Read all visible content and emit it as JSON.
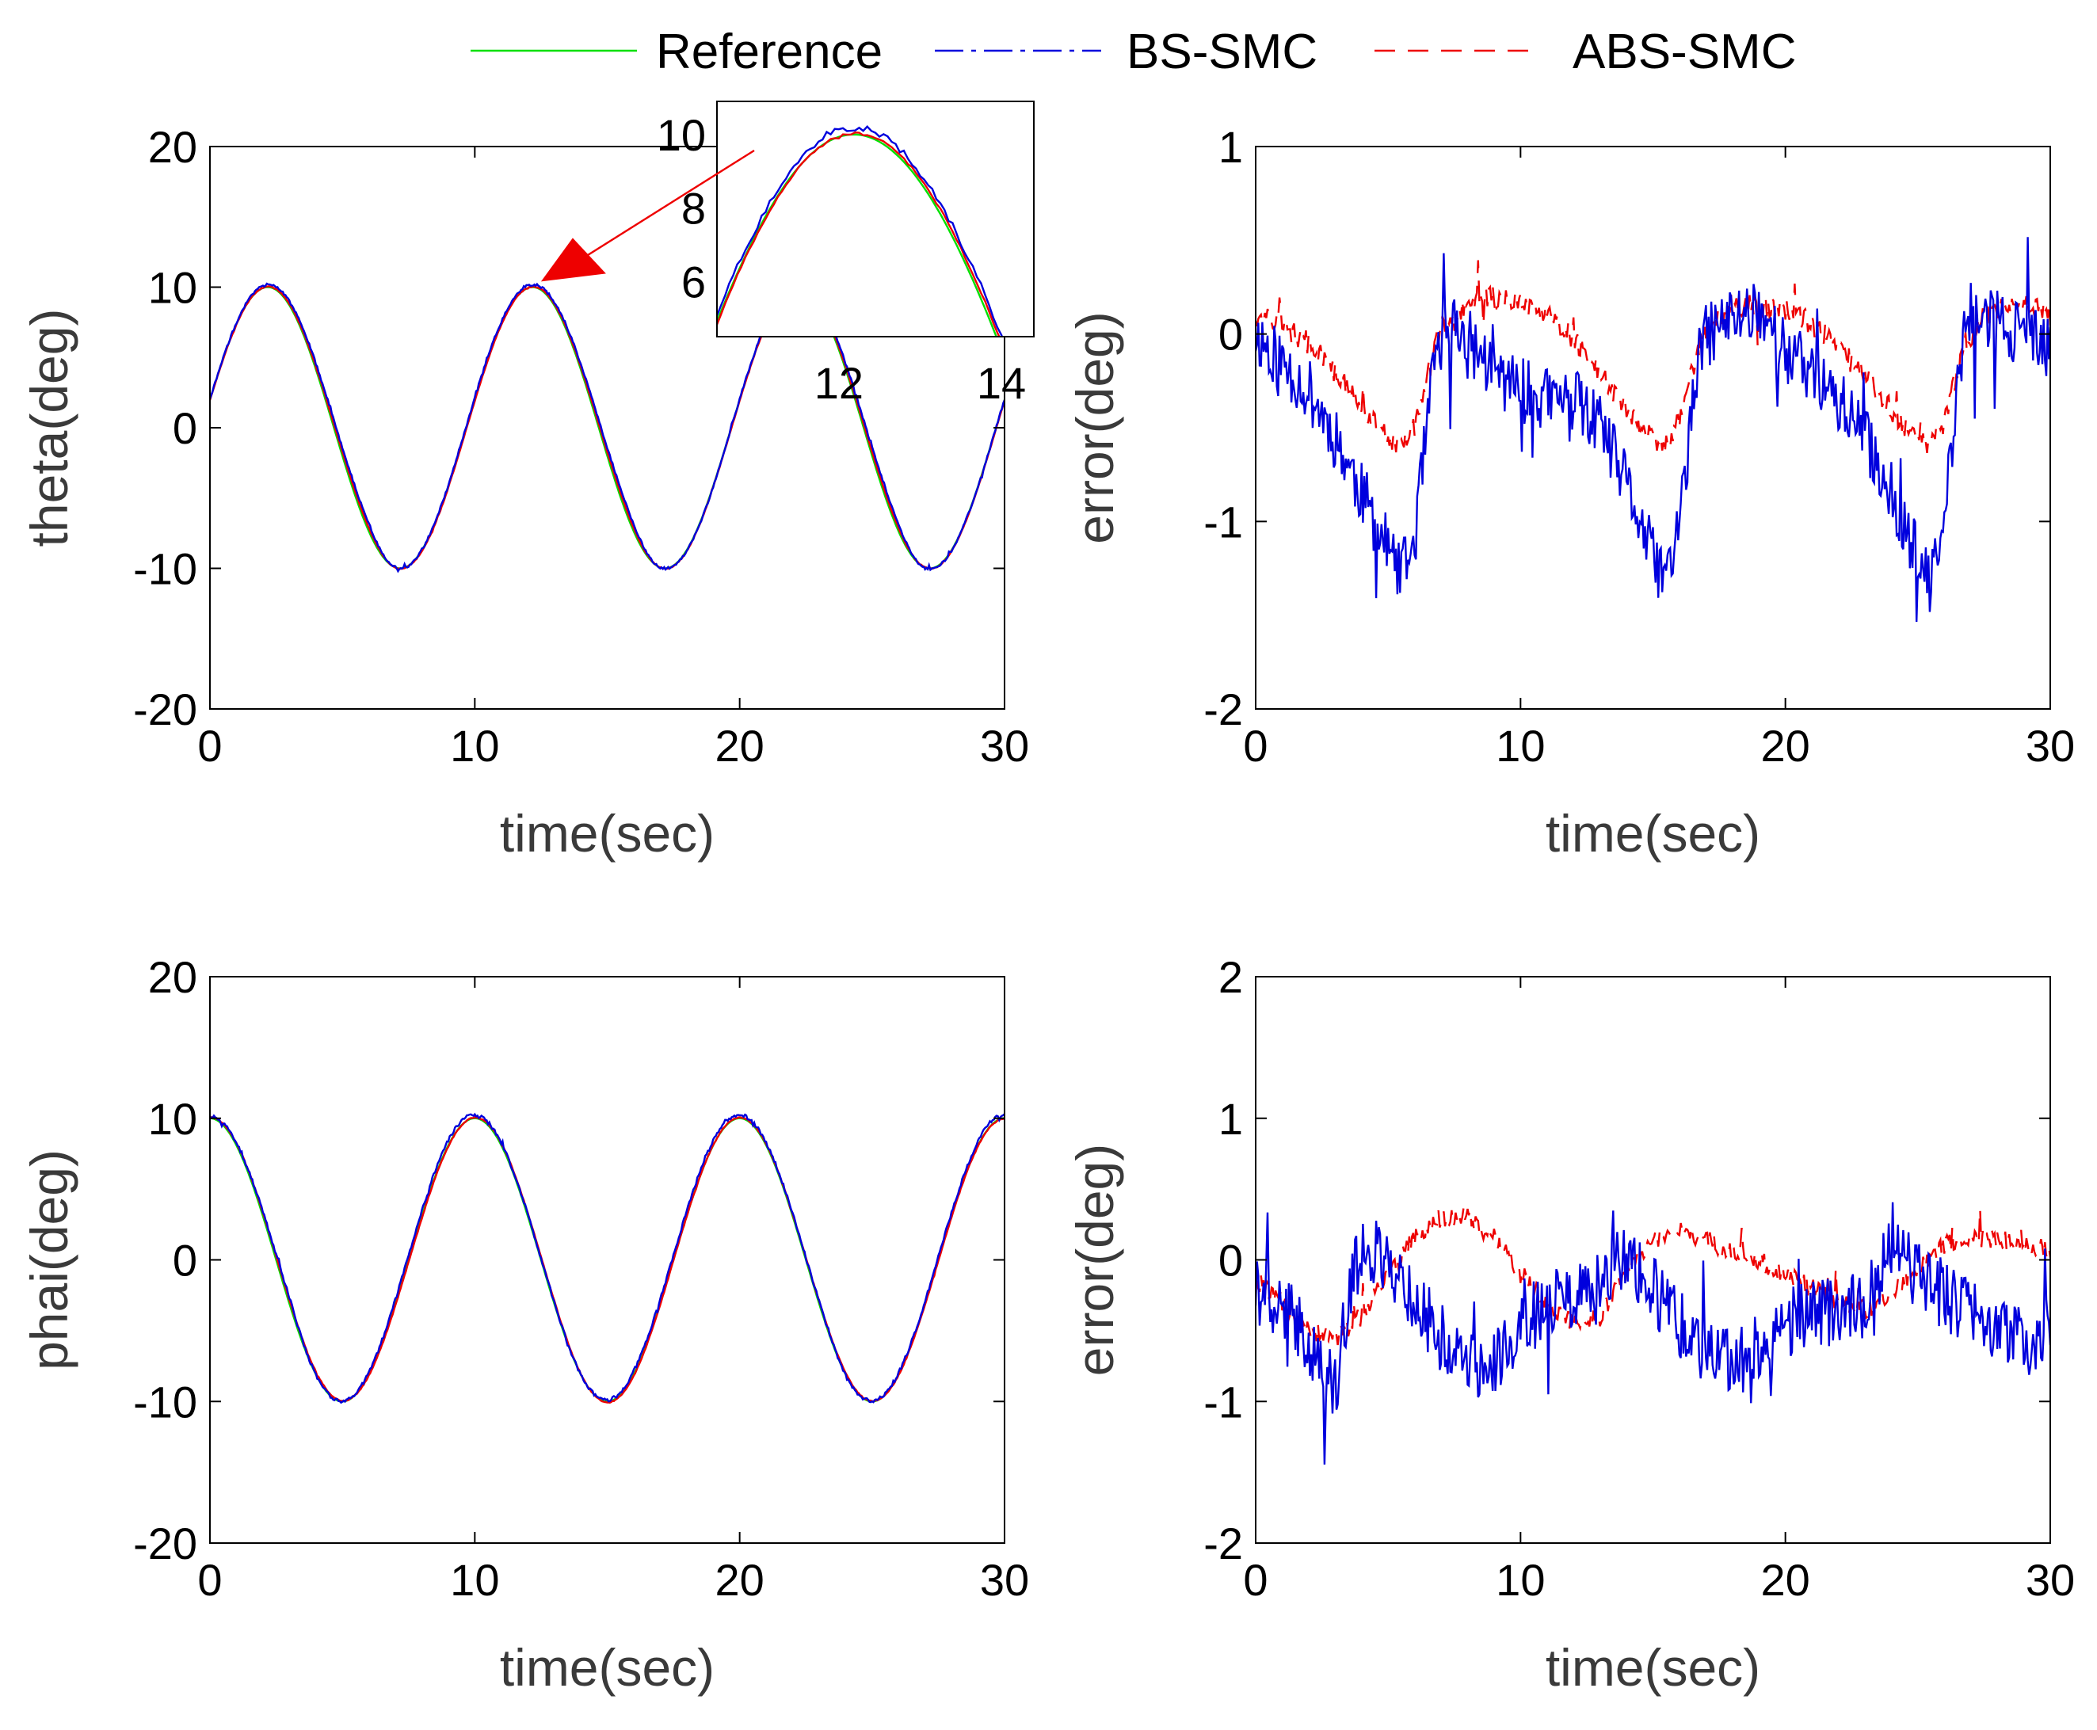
{
  "legend": {
    "entries": [
      {
        "label": "Reference",
        "color": "#00e000",
        "style": "solid"
      },
      {
        "label": "BS-SMC",
        "color": "#0000dd",
        "style": "dash-dot"
      },
      {
        "label": "ABS-SMC",
        "color": "#ee0000",
        "style": "dashed"
      }
    ]
  },
  "chart_data": [
    {
      "id": "theta",
      "type": "line",
      "title": "",
      "xlabel": "time(sec)",
      "ylabel": "theta(deg)",
      "xlim": [
        0,
        30
      ],
      "ylim": [
        -20,
        20
      ],
      "xticks": [
        0,
        10,
        20,
        30
      ],
      "yticks": [
        -20,
        -10,
        0,
        10,
        20
      ],
      "grid": false,
      "signal": "theta",
      "series": [
        {
          "name": "Reference",
          "color": "#00e000",
          "description": "clipped sine: 10*sin(2*pi*t/10 + 0.2), limited to [-10, 10]"
        },
        {
          "name": "BS-SMC",
          "color": "#0000dd",
          "description": "reference + tracking error (see theta error panel)"
        },
        {
          "name": "ABS-SMC",
          "color": "#ee0000",
          "description": "reference + tracking error (see theta error panel)"
        }
      ],
      "inset": {
        "xlim": [
          10.5,
          14.4
        ],
        "ylim": [
          4.5,
          10.9
        ],
        "xticks": [
          12,
          14
        ],
        "yticks": [
          6,
          8,
          10
        ],
        "arrow_target": {
          "x": 12.5,
          "y": 10.4
        }
      }
    },
    {
      "id": "theta-error",
      "type": "line",
      "title": "",
      "xlabel": "time(sec)",
      "ylabel": "error(deg)",
      "xlim": [
        0,
        30
      ],
      "ylim": [
        -2,
        1
      ],
      "xticks": [
        0,
        10,
        20,
        30
      ],
      "yticks": [
        -2,
        -1,
        0,
        1
      ],
      "grid": false,
      "signal": "theta-error",
      "series": [
        {
          "name": "BS-SMC",
          "color": "#0000dd",
          "x": [
            0,
            1,
            2,
            3,
            4,
            5,
            5.5,
            6,
            6.8,
            7.5,
            9,
            10,
            11,
            12,
            13,
            14,
            15,
            15.5,
            16,
            16.8,
            17.5,
            19,
            20,
            21,
            22,
            23,
            24,
            25,
            25.5,
            26,
            26.8,
            27.5,
            29,
            30
          ],
          "y": [
            0,
            -0.15,
            -0.3,
            -0.55,
            -0.85,
            -1.15,
            -1.3,
            -1.1,
            -0.1,
            0.05,
            -0.2,
            -0.3,
            -0.35,
            -0.35,
            -0.5,
            -0.8,
            -1.2,
            -1.3,
            -1.0,
            -0.05,
            0.05,
            0.15,
            -0.1,
            -0.2,
            -0.35,
            -0.55,
            -0.85,
            -1.2,
            -1.35,
            -1.0,
            0.1,
            0.1,
            0.0,
            -0.1
          ]
        },
        {
          "name": "ABS-SMC",
          "color": "#ee0000",
          "x": [
            0,
            1,
            2,
            3,
            4,
            5,
            5.5,
            6,
            6.8,
            7.5,
            8.5,
            9.5,
            10.5,
            11.5,
            12.5,
            13.5,
            14.5,
            15.5,
            16,
            16.8,
            17.5,
            18.5,
            19.5,
            20.5,
            21.5,
            22.5,
            23.5,
            24.5,
            25.5,
            26,
            26.8,
            27.5,
            28.5,
            29.5,
            30
          ],
          "y": [
            0.1,
            0.05,
            -0.05,
            -0.2,
            -0.4,
            -0.55,
            -0.6,
            -0.5,
            -0.05,
            0.1,
            0.2,
            0.2,
            0.15,
            0.05,
            -0.1,
            -0.3,
            -0.5,
            -0.6,
            -0.45,
            -0.05,
            0.1,
            0.15,
            0.15,
            0.1,
            0.0,
            -0.15,
            -0.3,
            -0.5,
            -0.6,
            -0.45,
            -0.05,
            0.1,
            0.15,
            0.15,
            0.1
          ]
        }
      ]
    },
    {
      "id": "phai",
      "type": "line",
      "title": "",
      "xlabel": "time(sec)",
      "ylabel": "phai(deg)",
      "xlim": [
        0,
        30
      ],
      "ylim": [
        -20,
        20
      ],
      "xticks": [
        0,
        10,
        20,
        30
      ],
      "yticks": [
        -20,
        -10,
        0,
        10,
        20
      ],
      "grid": false,
      "signal": "phai",
      "series": [
        {
          "name": "Reference",
          "color": "#00e000",
          "description": "clipped cosine: 10*cos(2*pi*t/10), limited to [-10, 10]"
        },
        {
          "name": "BS-SMC",
          "color": "#0000dd",
          "description": "reference + tracking error (see phai error panel)"
        },
        {
          "name": "ABS-SMC",
          "color": "#ee0000",
          "description": "reference + tracking error (see phai error panel)"
        }
      ]
    },
    {
      "id": "phai-error",
      "type": "line",
      "title": "",
      "xlabel": "time(sec)",
      "ylabel": "error(deg)",
      "xlim": [
        0,
        30
      ],
      "ylim": [
        -2,
        2
      ],
      "xticks": [
        0,
        10,
        20,
        30
      ],
      "yticks": [
        -2,
        -1,
        0,
        1,
        2
      ],
      "grid": false,
      "signal": "phai-error",
      "series": [
        {
          "name": "BS-SMC",
          "color": "#0000dd",
          "x": [
            0,
            1,
            2,
            2.5,
            3,
            3.5,
            4,
            5,
            6,
            7,
            8,
            9,
            10,
            11,
            12,
            13,
            14,
            15,
            16,
            17,
            18,
            19,
            20,
            21,
            22,
            23,
            24,
            25,
            26,
            27,
            28,
            29,
            30
          ],
          "y": [
            -0.2,
            -0.35,
            -0.55,
            -0.8,
            -0.9,
            -0.3,
            0.1,
            0.0,
            -0.3,
            -0.55,
            -0.75,
            -0.7,
            -0.5,
            -0.3,
            -0.3,
            -0.2,
            0.05,
            -0.2,
            -0.45,
            -0.7,
            -0.75,
            -0.6,
            -0.45,
            -0.4,
            -0.35,
            -0.3,
            0.05,
            -0.1,
            -0.25,
            -0.35,
            -0.5,
            -0.6,
            -0.45
          ]
        },
        {
          "name": "ABS-SMC",
          "color": "#ee0000",
          "x": [
            0,
            1,
            2,
            3,
            4,
            5,
            6,
            7,
            8,
            9,
            10,
            11,
            12,
            13,
            14,
            15,
            16,
            17,
            18,
            19,
            20,
            21,
            22,
            23,
            24,
            25,
            26,
            27,
            28,
            29,
            30
          ],
          "y": [
            -0.15,
            -0.3,
            -0.5,
            -0.55,
            -0.4,
            -0.1,
            0.15,
            0.3,
            0.3,
            0.15,
            -0.1,
            -0.3,
            -0.45,
            -0.4,
            -0.1,
            0.15,
            0.2,
            0.15,
            0.05,
            0.0,
            -0.1,
            -0.2,
            -0.3,
            -0.35,
            -0.25,
            -0.05,
            0.1,
            0.15,
            0.15,
            0.1,
            0.05
          ]
        }
      ]
    }
  ]
}
